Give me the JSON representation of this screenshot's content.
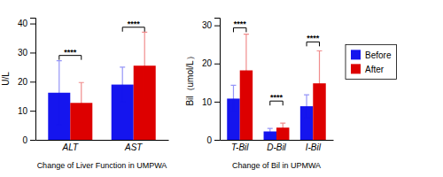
{
  "chart_data": [
    {
      "type": "bar",
      "xlabel": "Change of Liver Function in UMPWA",
      "ylabel": "U/L",
      "categories": [
        "ALT",
        "AST"
      ],
      "series": [
        {
          "name": "Before",
          "color": "#1515ee",
          "values": [
            16.2,
            19.0
          ],
          "errors": [
            11.0,
            6.0
          ]
        },
        {
          "name": "After",
          "color": "#dd0000",
          "values": [
            12.7,
            25.5
          ],
          "errors": [
            7.0,
            11.5
          ]
        }
      ],
      "ylim": [
        0,
        42
      ],
      "yticks": [
        0,
        10,
        20,
        30,
        40
      ],
      "annotations": [
        {
          "text": "****",
          "x": "ALT",
          "y": 27.5
        },
        {
          "text": "****",
          "x": "AST",
          "y": 37.2
        }
      ]
    },
    {
      "type": "bar",
      "xlabel": "Change of Bil in UPMWA",
      "ylabel": "Bil（umol/L）",
      "categories": [
        "T-Bil",
        "D-Bil",
        "I-Bil"
      ],
      "series": [
        {
          "name": "Before",
          "color": "#1515ee",
          "values": [
            10.8,
            2.2,
            8.8
          ],
          "errors": [
            3.5,
            0.8,
            3.0
          ]
        },
        {
          "name": "After",
          "color": "#dd0000",
          "values": [
            18.2,
            3.2,
            14.8
          ],
          "errors": [
            9.5,
            1.2,
            8.5
          ]
        }
      ],
      "ylim": [
        0,
        32
      ],
      "yticks": [
        0,
        10,
        20,
        30
      ],
      "annotations": [
        {
          "text": "****",
          "x": "T-Bil",
          "y": 28.2
        },
        {
          "text": "****",
          "x": "D-Bil",
          "y": 9.0
        },
        {
          "text": "****",
          "x": "I-Bil",
          "y": 24.5
        }
      ],
      "legend": "right"
    }
  ]
}
